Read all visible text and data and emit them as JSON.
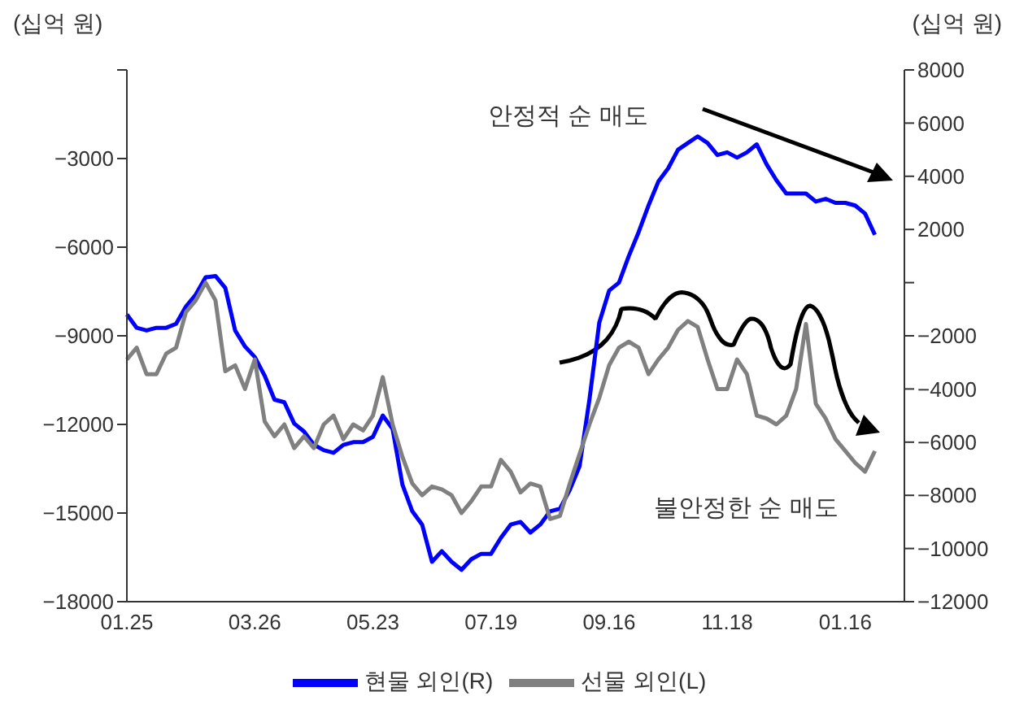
{
  "chart_data": {
    "type": "line",
    "ylabel": "(십억 원)",
    "y2label": "(십억 원)",
    "categories": [
      "01.25",
      null,
      null,
      null,
      null,
      null,
      null,
      null,
      null,
      null,
      null,
      null,
      null,
      "03.26",
      null,
      null,
      null,
      null,
      null,
      null,
      null,
      null,
      null,
      null,
      null,
      "05.23",
      null,
      null,
      null,
      null,
      null,
      null,
      null,
      null,
      null,
      null,
      null,
      "07.19",
      null,
      null,
      null,
      null,
      null,
      null,
      null,
      null,
      null,
      null,
      null,
      "09.16",
      null,
      null,
      null,
      null,
      null,
      null,
      null,
      null,
      null,
      null,
      null,
      "11.18",
      null,
      null,
      null,
      null,
      null,
      null,
      null,
      null,
      null,
      null,
      null,
      "01.16",
      null,
      null,
      null,
      null,
      null,
      null
    ],
    "series": [
      {
        "name": "현물 외인(R)",
        "color": "#0000ff",
        "axis": "y2",
        "values": [
          -1200,
          -1700,
          -1800,
          -1700,
          -1700,
          -1550,
          -900,
          -450,
          200,
          250,
          -200,
          -1800,
          -2400,
          -2800,
          -3500,
          -4400,
          -4500,
          -5300,
          -5600,
          -6100,
          -6300,
          -6400,
          -6100,
          -6000,
          -6000,
          -5800,
          -5000,
          -5500,
          -7600,
          -8600,
          -9100,
          -10500,
          -10100,
          -10500,
          -10800,
          -10400,
          -10200,
          -10200,
          -9600,
          -9100,
          -9000,
          -9400,
          -9100,
          -8600,
          -8500,
          -7800,
          -6900,
          -4400,
          -1500,
          -300,
          0,
          1000,
          1900,
          2900,
          3800,
          4300,
          5000,
          5250,
          5500,
          5250,
          4800,
          4900,
          4700,
          4900,
          5200,
          4450,
          3850,
          3350,
          3350,
          3350,
          3050,
          3150,
          3000,
          3000,
          2900,
          2600,
          1800,
          null,
          null,
          null
        ]
      },
      {
        "name": "선물 외인(L)",
        "color": "#808080",
        "values": [
          -9800,
          -9400,
          -10300,
          -10300,
          -9600,
          -9400,
          -8200,
          -7800,
          -7200,
          -7800,
          -10200,
          -10000,
          -10800,
          -9800,
          -11900,
          -12400,
          -12000,
          -12800,
          -12400,
          -12800,
          -12000,
          -11700,
          -12500,
          -12000,
          -12200,
          -11700,
          -10400,
          -12000,
          -13100,
          -14000,
          -14400,
          -14100,
          -14200,
          -14400,
          -15000,
          -14600,
          -14100,
          -14100,
          -13200,
          -13600,
          -14300,
          -14000,
          -14100,
          -15200,
          -15100,
          -14000,
          -13000,
          -12000,
          -11100,
          -10000,
          -9400,
          -9200,
          -9400,
          -10300,
          -9800,
          -9400,
          -8800,
          -8500,
          -8700,
          -9800,
          -10800,
          -10800,
          -9800,
          -10300,
          -11700,
          -11800,
          -12000,
          -11700,
          -10800,
          -8600,
          -11300,
          -11800,
          -12500,
          -12900,
          -13300,
          -13600,
          -12900,
          null,
          null,
          null
        ]
      }
    ],
    "ylim": [
      -18000,
      0
    ],
    "yticks": [
      -18000,
      -15000,
      -12000,
      -9000,
      -6000,
      -3000,
      {
        "value": 0,
        "label": null
      }
    ],
    "y2lim": [
      -12000,
      8000
    ],
    "y2ticks": [
      -12000,
      -10000,
      -8000,
      -6000,
      -4000,
      -2000,
      {
        "value": 0,
        "label": null
      },
      2000,
      4000,
      6000,
      8000
    ],
    "annotations": [
      "안정적 순 매도",
      "불안정한 순 매도"
    ],
    "legend": "bottom",
    "line_style": "solid",
    "marker": "none"
  }
}
